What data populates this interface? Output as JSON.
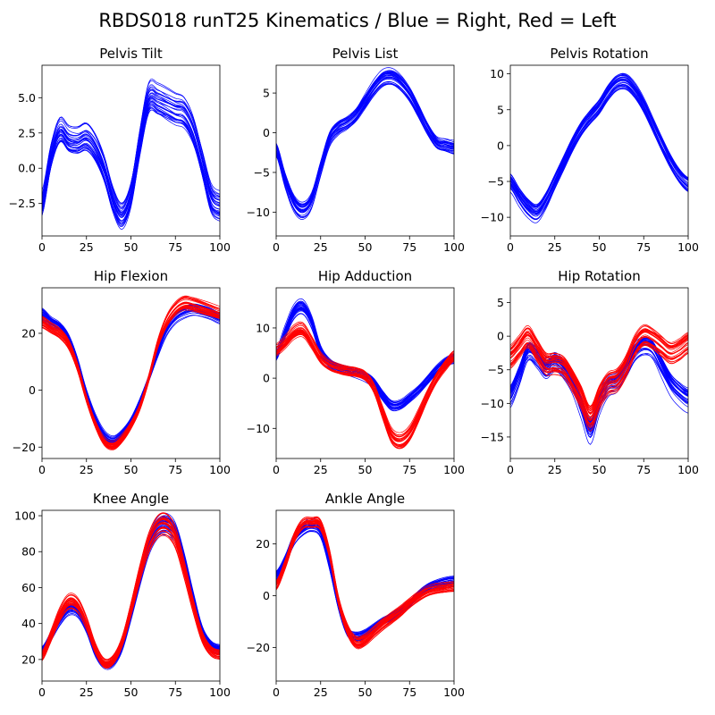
{
  "figure": {
    "title": "RBDS018 runT25 Kinematics / Blue = Right, Red = Left",
    "colors": {
      "right": "#0000ff",
      "left": "#ff0000"
    }
  },
  "chart_data": [
    {
      "type": "line",
      "title": "Pelvis Tilt",
      "xlim": [
        0,
        100
      ],
      "ylim": [
        -4.8,
        7.3
      ],
      "xticks": [
        0,
        25,
        50,
        75,
        100
      ],
      "yticks": [
        -2.5,
        0.0,
        2.5,
        5.0
      ],
      "yticklabels": [
        "−2.5",
        "0.0",
        "2.5",
        "5.0"
      ],
      "series": [
        {
          "color": "#0000ff",
          "count": 30,
          "spread": 0.9,
          "x": [
            0,
            5,
            10,
            15,
            20,
            25,
            30,
            35,
            40,
            45,
            50,
            55,
            60,
            65,
            70,
            75,
            80,
            85,
            90,
            95,
            100
          ],
          "y": [
            -2.5,
            0.8,
            2.6,
            2.0,
            1.9,
            2.2,
            1.5,
            0.0,
            -2.2,
            -3.3,
            -1.8,
            1.8,
            4.9,
            4.8,
            4.5,
            4.2,
            4.0,
            2.8,
            0.5,
            -2.0,
            -2.6
          ]
        }
      ]
    },
    {
      "type": "line",
      "title": "Pelvis List",
      "xlim": [
        0,
        100
      ],
      "ylim": [
        -13,
        8.5
      ],
      "xticks": [
        0,
        25,
        50,
        75,
        100
      ],
      "yticks": [
        -10,
        -5,
        0,
        5
      ],
      "yticklabels": [
        "−10",
        "−5",
        "0",
        "5"
      ],
      "series": [
        {
          "color": "#0000ff",
          "count": 30,
          "spread": 0.8,
          "x": [
            0,
            5,
            10,
            15,
            20,
            25,
            30,
            35,
            40,
            45,
            50,
            55,
            60,
            65,
            70,
            75,
            80,
            85,
            90,
            95,
            100
          ],
          "y": [
            -2.2,
            -6.0,
            -8.9,
            -9.8,
            -8.5,
            -4.5,
            -0.8,
            0.6,
            1.2,
            2.2,
            3.9,
            5.6,
            6.8,
            7.0,
            6.3,
            4.9,
            2.8,
            0.5,
            -1.3,
            -1.7,
            -2.0
          ]
        }
      ]
    },
    {
      "type": "line",
      "title": "Pelvis Rotation",
      "xlim": [
        0,
        100
      ],
      "ylim": [
        -12.6,
        11.2
      ],
      "xticks": [
        0,
        25,
        50,
        75,
        100
      ],
      "yticks": [
        -10,
        -5,
        0,
        5,
        10
      ],
      "yticklabels": [
        "−10",
        "−5",
        "0",
        "5",
        "10"
      ],
      "series": [
        {
          "color": "#0000ff",
          "count": 30,
          "spread": 1.0,
          "x": [
            0,
            5,
            10,
            15,
            20,
            25,
            30,
            35,
            40,
            45,
            50,
            55,
            60,
            65,
            70,
            75,
            80,
            85,
            90,
            95,
            100
          ],
          "y": [
            -5.0,
            -7.0,
            -8.6,
            -9.3,
            -7.6,
            -5.0,
            -2.4,
            0.2,
            2.4,
            4.0,
            5.4,
            7.4,
            8.8,
            9.0,
            7.8,
            5.7,
            3.0,
            0.3,
            -2.2,
            -4.2,
            -5.4
          ]
        }
      ]
    },
    {
      "type": "line",
      "title": "Hip Flexion",
      "xlim": [
        0,
        100
      ],
      "ylim": [
        -24,
        36
      ],
      "xticks": [
        0,
        25,
        50,
        75,
        100
      ],
      "yticks": [
        -20,
        0,
        20
      ],
      "yticklabels": [
        "−20",
        "0",
        "20"
      ],
      "series": [
        {
          "color": "#0000ff",
          "count": 30,
          "spread": 1.0,
          "x": [
            0,
            5,
            10,
            15,
            20,
            25,
            30,
            35,
            40,
            45,
            50,
            55,
            60,
            65,
            70,
            75,
            80,
            85,
            90,
            95,
            100
          ],
          "y": [
            27,
            24,
            22,
            18,
            10,
            -1,
            -10,
            -16,
            -18,
            -15.5,
            -11,
            -4,
            4,
            13,
            21,
            25.5,
            27.5,
            28.5,
            28,
            27,
            25.5
          ]
        },
        {
          "color": "#ff0000",
          "count": 30,
          "spread": 1.2,
          "x": [
            0,
            5,
            10,
            15,
            20,
            25,
            30,
            35,
            40,
            45,
            50,
            55,
            60,
            65,
            70,
            75,
            80,
            85,
            90,
            95,
            100
          ],
          "y": [
            24,
            22,
            20,
            16,
            8,
            -3,
            -12,
            -18,
            -19.5,
            -17,
            -12.5,
            -6,
            4,
            16,
            24,
            28.5,
            30.5,
            30,
            29,
            28,
            27
          ]
        }
      ]
    },
    {
      "type": "line",
      "title": "Hip Adduction",
      "xlim": [
        0,
        100
      ],
      "ylim": [
        -16,
        18
      ],
      "xticks": [
        0,
        25,
        50,
        75,
        100
      ],
      "yticks": [
        -10,
        0,
        10
      ],
      "yticklabels": [
        "−10",
        "0",
        "10"
      ],
      "series": [
        {
          "color": "#0000ff",
          "count": 30,
          "spread": 0.9,
          "x": [
            0,
            5,
            10,
            15,
            20,
            25,
            30,
            35,
            40,
            45,
            50,
            55,
            60,
            65,
            70,
            75,
            80,
            85,
            90,
            95,
            100
          ],
          "y": [
            4.5,
            9,
            13,
            14,
            11,
            5.5,
            3,
            2,
            1.5,
            1,
            0.3,
            -1,
            -3.5,
            -5.5,
            -5.3,
            -4,
            -2.5,
            -0.5,
            1.5,
            3,
            3.8
          ]
        },
        {
          "color": "#ff0000",
          "count": 30,
          "spread": 0.9,
          "x": [
            0,
            5,
            10,
            15,
            20,
            25,
            30,
            35,
            40,
            45,
            50,
            55,
            60,
            65,
            70,
            75,
            80,
            85,
            90,
            95,
            100
          ],
          "y": [
            5.5,
            7,
            9,
            9.5,
            7,
            4,
            2.5,
            1.8,
            1.4,
            1.2,
            0.5,
            -2,
            -7,
            -11.5,
            -12.5,
            -11,
            -7.5,
            -3.5,
            0,
            2.5,
            4.5
          ]
        }
      ]
    },
    {
      "type": "line",
      "title": "Hip Rotation",
      "xlim": [
        0,
        100
      ],
      "ylim": [
        -18.2,
        7.2
      ],
      "xticks": [
        0,
        25,
        50,
        75,
        100
      ],
      "yticks": [
        -15,
        -10,
        -5,
        0,
        5
      ],
      "yticklabels": [
        "−15",
        "−10",
        "−5",
        "0",
        "5"
      ],
      "series": [
        {
          "color": "#0000ff",
          "count": 30,
          "spread": 1.3,
          "x": [
            0,
            5,
            10,
            15,
            20,
            25,
            30,
            35,
            40,
            45,
            50,
            55,
            60,
            65,
            70,
            75,
            80,
            85,
            90,
            95,
            100
          ],
          "y": [
            -9,
            -6,
            -2.5,
            -3.5,
            -5,
            -4,
            -5,
            -7,
            -10.5,
            -14,
            -10,
            -7.5,
            -7,
            -5,
            -2.5,
            -1.5,
            -2,
            -4.5,
            -7,
            -8.5,
            -9.5
          ]
        },
        {
          "color": "#ff0000",
          "count": 30,
          "spread": 1.6,
          "x": [
            0,
            5,
            10,
            15,
            20,
            25,
            30,
            35,
            40,
            45,
            50,
            55,
            60,
            65,
            70,
            75,
            80,
            85,
            90,
            95,
            100
          ],
          "y": [
            -3,
            -1.5,
            0,
            -2,
            -4,
            -4,
            -4.5,
            -6.5,
            -9,
            -12,
            -9,
            -7,
            -6.5,
            -4.5,
            -1.5,
            0,
            -0.5,
            -1.5,
            -2.5,
            -2,
            -1
          ]
        }
      ]
    },
    {
      "type": "line",
      "title": "Knee Angle",
      "xlim": [
        0,
        100
      ],
      "ylim": [
        8,
        103
      ],
      "xticks": [
        0,
        25,
        50,
        75,
        100
      ],
      "yticks": [
        20,
        40,
        60,
        80,
        100
      ],
      "yticklabels": [
        "20",
        "40",
        "60",
        "80",
        "100"
      ],
      "series": [
        {
          "color": "#0000ff",
          "count": 30,
          "spread": 1.5,
          "x": [
            0,
            5,
            10,
            15,
            20,
            25,
            30,
            35,
            40,
            45,
            50,
            55,
            60,
            65,
            70,
            75,
            80,
            85,
            90,
            95,
            100
          ],
          "y": [
            25,
            33,
            42,
            48,
            47,
            38,
            24,
            17,
            18,
            27,
            45,
            65,
            83,
            93,
            95,
            90,
            74,
            54,
            36,
            28,
            26
          ]
        },
        {
          "color": "#ff0000",
          "count": 30,
          "spread": 1.8,
          "x": [
            0,
            5,
            10,
            15,
            20,
            25,
            30,
            35,
            40,
            45,
            50,
            55,
            60,
            65,
            70,
            75,
            80,
            85,
            90,
            95,
            100
          ],
          "y": [
            22,
            33,
            45,
            52,
            50,
            40,
            26,
            18,
            20,
            30,
            48,
            68,
            85,
            94,
            95,
            88,
            70,
            50,
            33,
            25,
            23
          ]
        }
      ]
    },
    {
      "type": "line",
      "title": "Ankle Angle",
      "xlim": [
        0,
        100
      ],
      "ylim": [
        -33,
        33
      ],
      "xticks": [
        0,
        25,
        50,
        75,
        100
      ],
      "yticks": [
        -20,
        0,
        20
      ],
      "yticklabels": [
        "−20",
        "0",
        "20"
      ],
      "series": [
        {
          "color": "#0000ff",
          "count": 30,
          "spread": 1.3,
          "x": [
            0,
            5,
            10,
            15,
            20,
            25,
            30,
            35,
            40,
            45,
            50,
            55,
            60,
            65,
            70,
            75,
            80,
            85,
            90,
            95,
            100
          ],
          "y": [
            8,
            14,
            22,
            26,
            27.5,
            25,
            12,
            -4,
            -14,
            -16,
            -15,
            -12.5,
            -10,
            -8,
            -5.5,
            -3,
            0.5,
            3,
            4.5,
            5.5,
            6
          ]
        },
        {
          "color": "#ff0000",
          "count": 30,
          "spread": 1.8,
          "x": [
            0,
            5,
            10,
            15,
            20,
            25,
            30,
            35,
            40,
            45,
            50,
            55,
            60,
            65,
            70,
            75,
            80,
            85,
            90,
            95,
            100
          ],
          "y": [
            4,
            12,
            22,
            27.5,
            28,
            27,
            16,
            -2,
            -13,
            -18,
            -17,
            -14,
            -11,
            -8.5,
            -6,
            -3,
            -0.5,
            1.5,
            2.5,
            3,
            3.5
          ]
        }
      ]
    }
  ]
}
